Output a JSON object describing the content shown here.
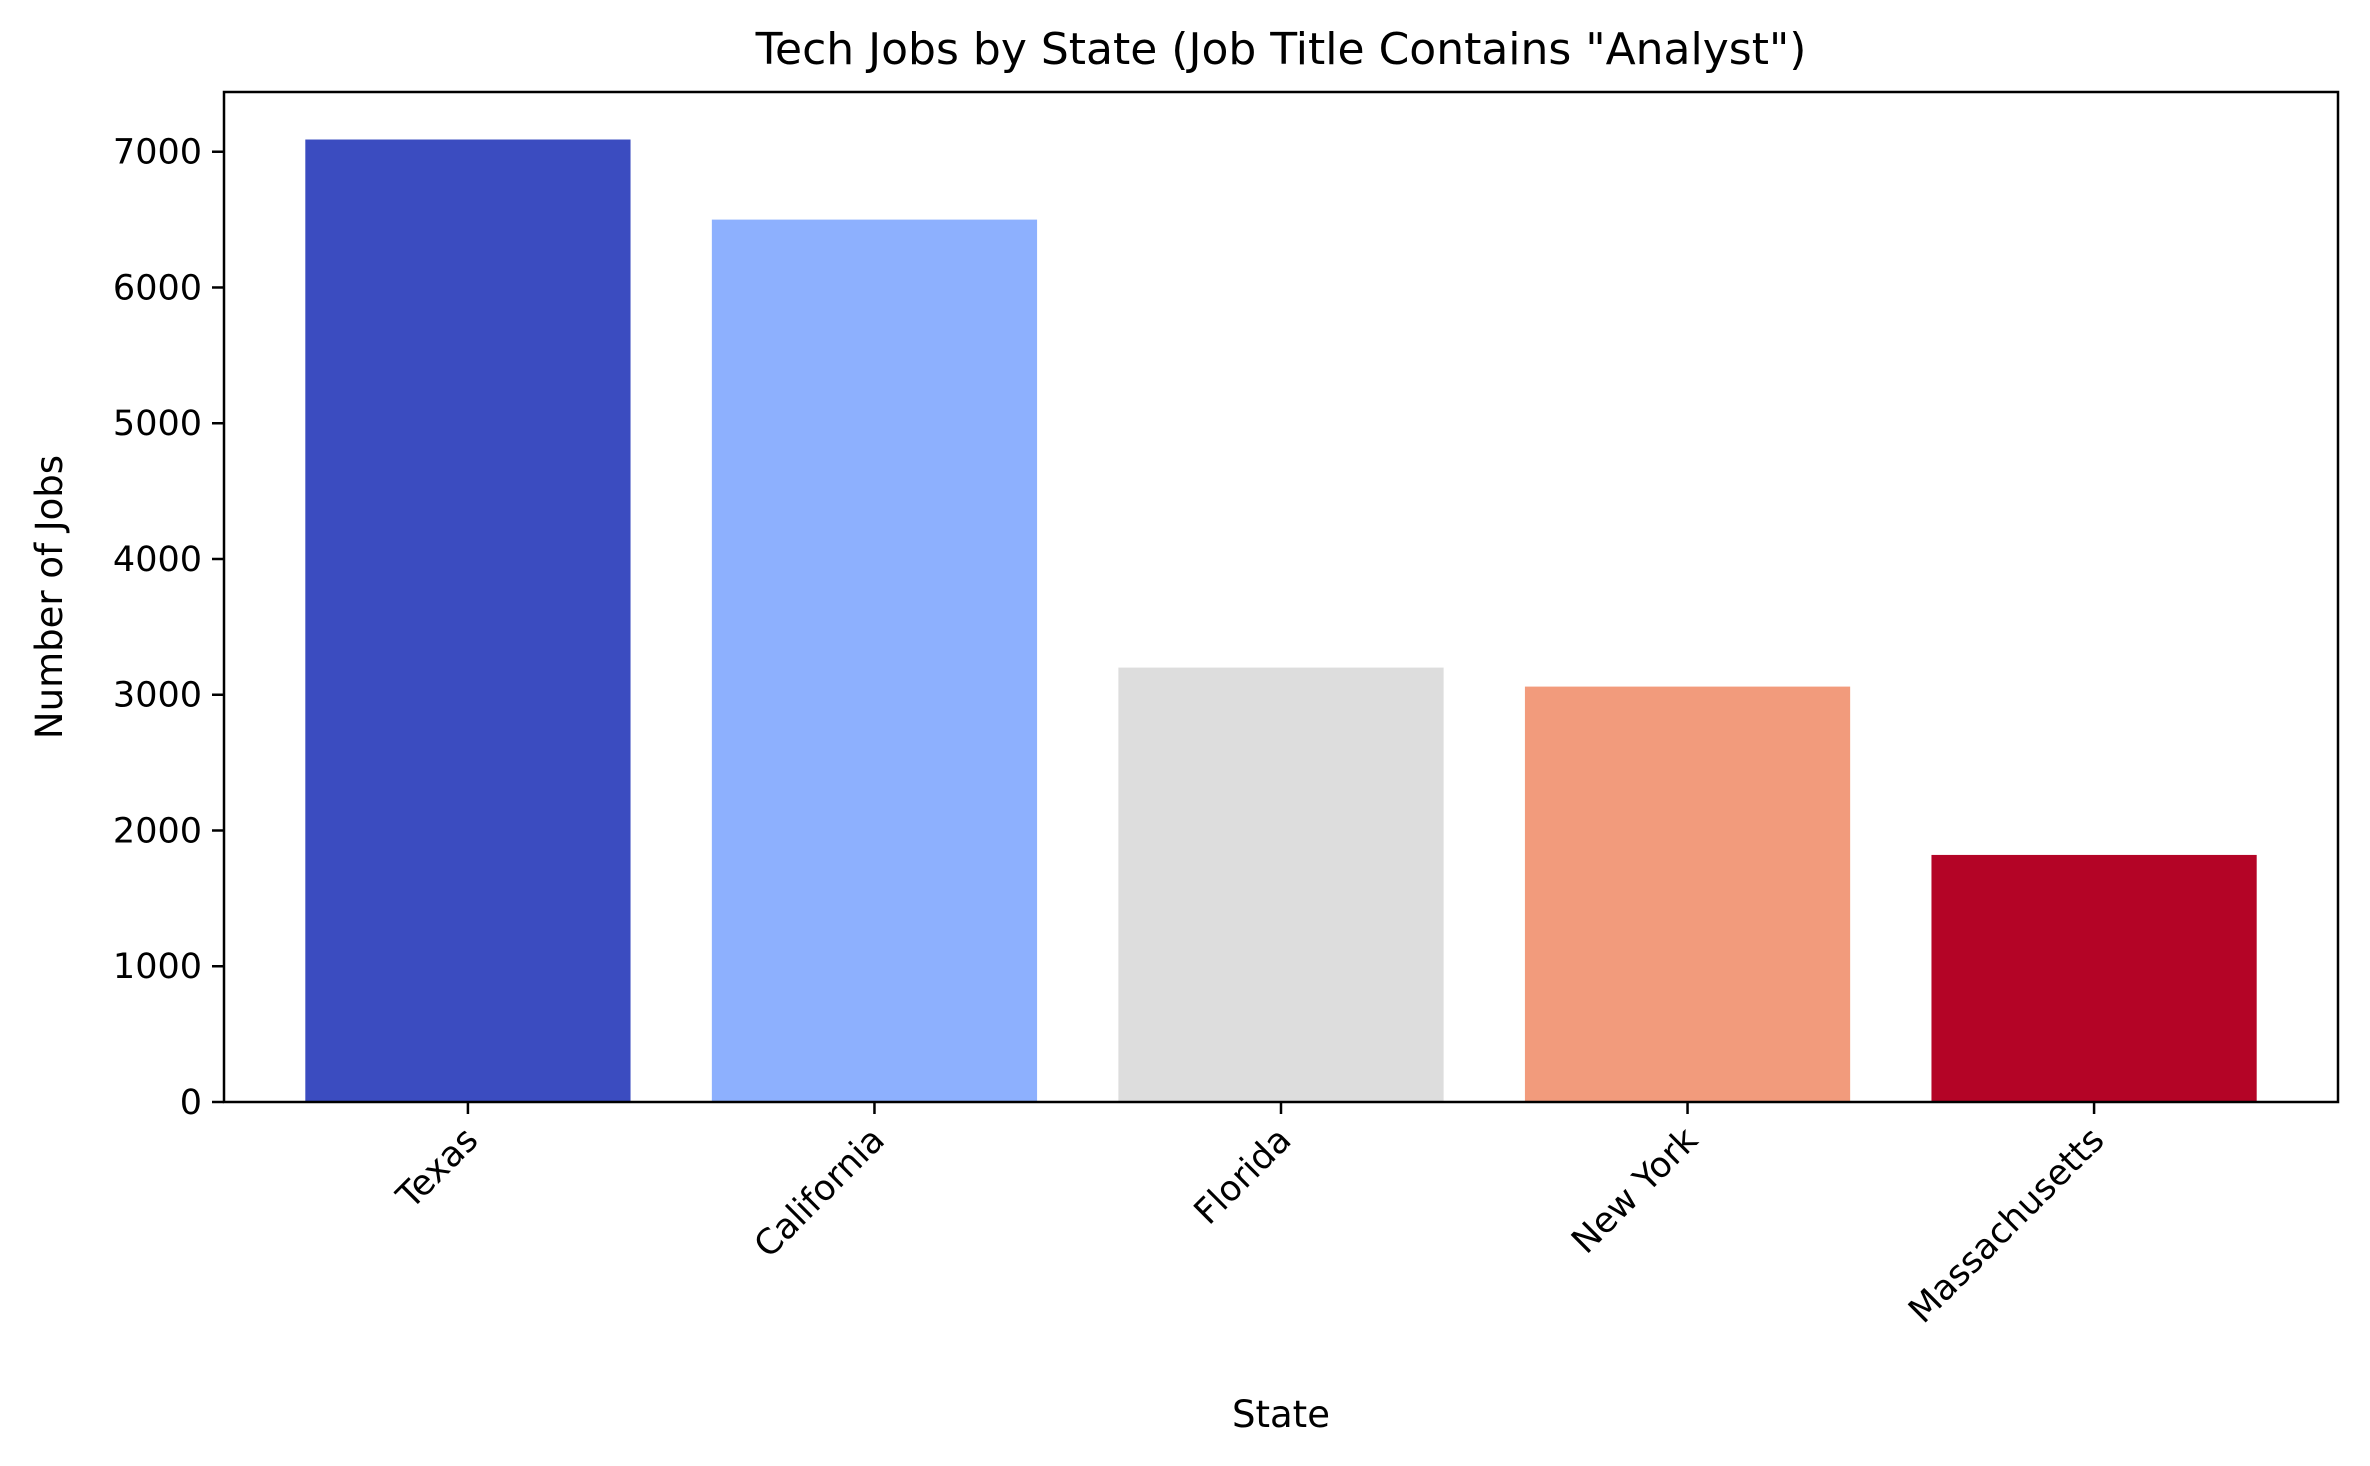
{
  "chart_data": {
    "type": "bar",
    "title": "Tech Jobs by State (Job Title Contains \"Analyst\")",
    "xlabel": "State",
    "ylabel": "Number of Jobs",
    "categories": [
      "Texas",
      "California",
      "Florida",
      "New York",
      "Massachusetts"
    ],
    "values": [
      7090,
      6500,
      3200,
      3060,
      1820
    ],
    "colors": [
      "#3b4cc0",
      "#8db0fe",
      "#dddddd",
      "#f29b7c",
      "#b40426"
    ],
    "yticks": [
      0,
      1000,
      2000,
      3000,
      4000,
      5000,
      6000,
      7000
    ],
    "ylim": [
      0,
      7440
    ],
    "grid": false,
    "legend": "none",
    "x_tick_rotation_deg": 45
  }
}
